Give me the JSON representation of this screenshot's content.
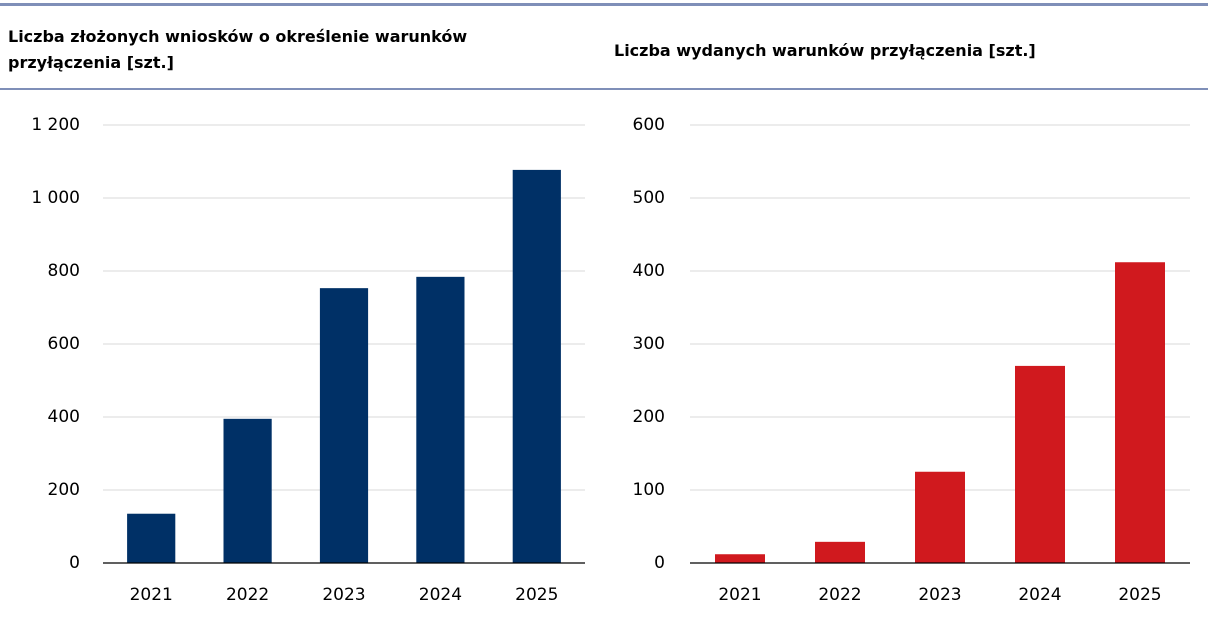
{
  "chart_data": [
    {
      "type": "bar",
      "title": "Liczba złożonych wniosków o określenie warunków przyłączenia [szt.]",
      "categories": [
        "2021",
        "2022",
        "2023",
        "2024",
        "2025"
      ],
      "values": [
        135,
        395,
        753,
        784,
        1077
      ],
      "color": "#003066",
      "ylim": [
        0,
        1200
      ],
      "yticks": [
        0,
        200,
        400,
        600,
        800,
        {
          "value": 1000,
          "label": "1 000"
        },
        {
          "value": 1200,
          "label": "1 200"
        }
      ],
      "grid": true
    },
    {
      "type": "bar",
      "title": "Liczba wydanych warunków przyłączenia [szt.]",
      "categories": [
        "2021",
        "2022",
        "2023",
        "2024",
        "2025"
      ],
      "values": [
        12,
        29,
        125,
        270,
        412
      ],
      "color": "#d0191e",
      "ylim": [
        0,
        600
      ],
      "yticks": [
        0,
        100,
        200,
        300,
        400,
        500,
        600
      ],
      "grid": true
    }
  ]
}
